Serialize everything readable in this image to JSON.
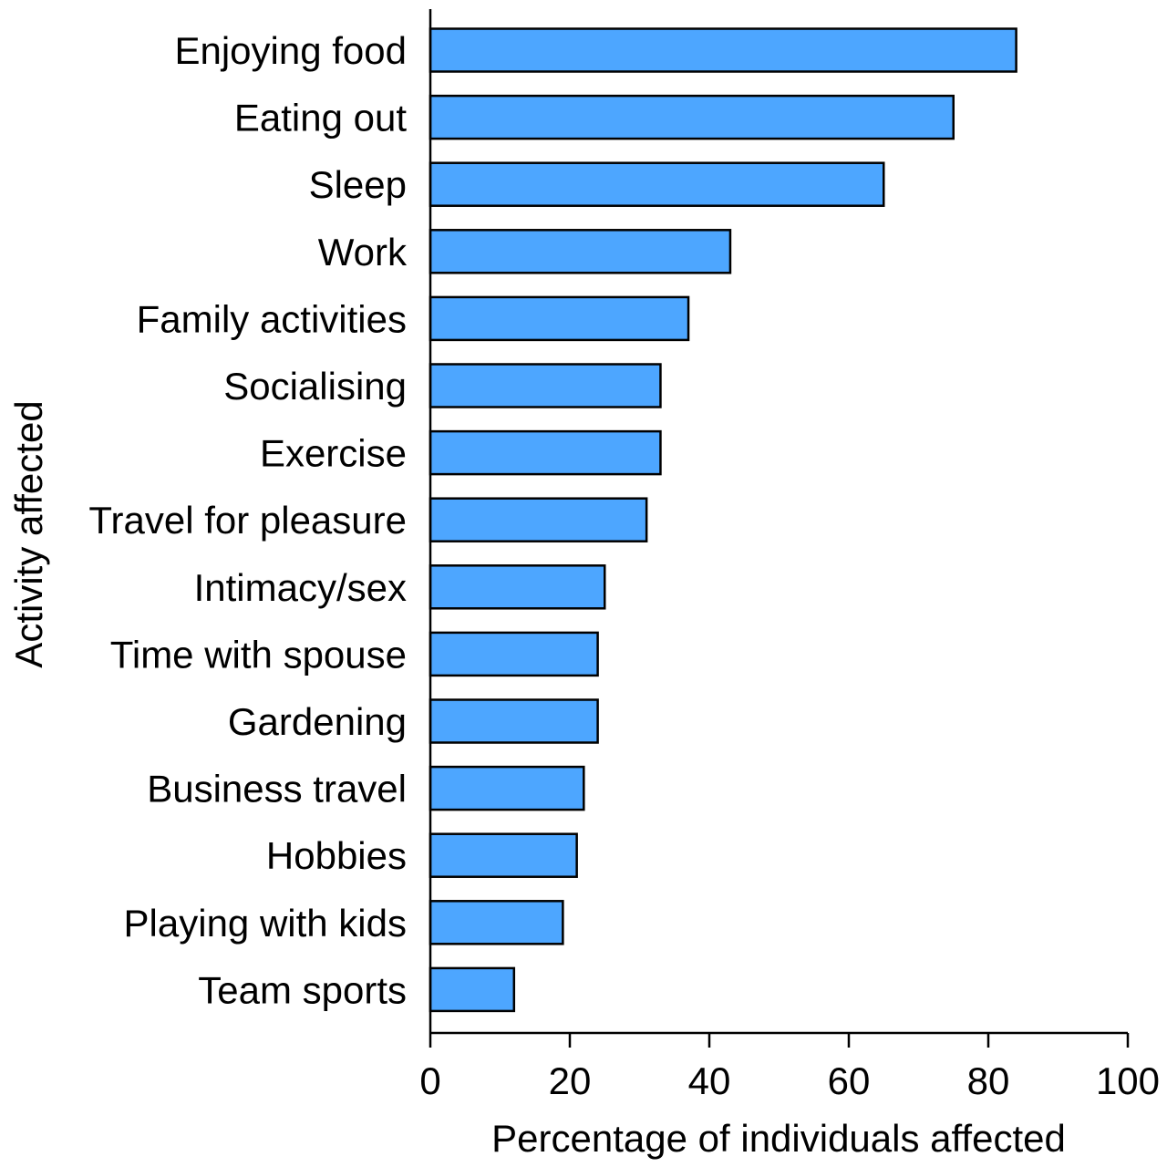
{
  "chart_data": {
    "type": "bar",
    "orientation": "horizontal",
    "title": "",
    "xlabel": "Percentage of individuals affected",
    "ylabel": "Activity affected",
    "xlim": [
      0,
      100
    ],
    "xticks": [
      "0",
      "20",
      "40",
      "60",
      "80",
      "100"
    ],
    "grid": false,
    "bar_color": "#4da6ff",
    "categories": [
      "Enjoying food",
      "Eating out",
      "Sleep",
      "Work",
      "Family activities",
      "Socialising",
      "Exercise",
      "Travel for pleasure",
      "Intimacy/sex",
      "Time with spouse",
      "Gardening",
      "Business travel",
      "Hobbies",
      "Playing with kids",
      "Team sports"
    ],
    "values": [
      84,
      75,
      65,
      43,
      37,
      33,
      33,
      31,
      25,
      24,
      24,
      22,
      21,
      19,
      12
    ]
  }
}
